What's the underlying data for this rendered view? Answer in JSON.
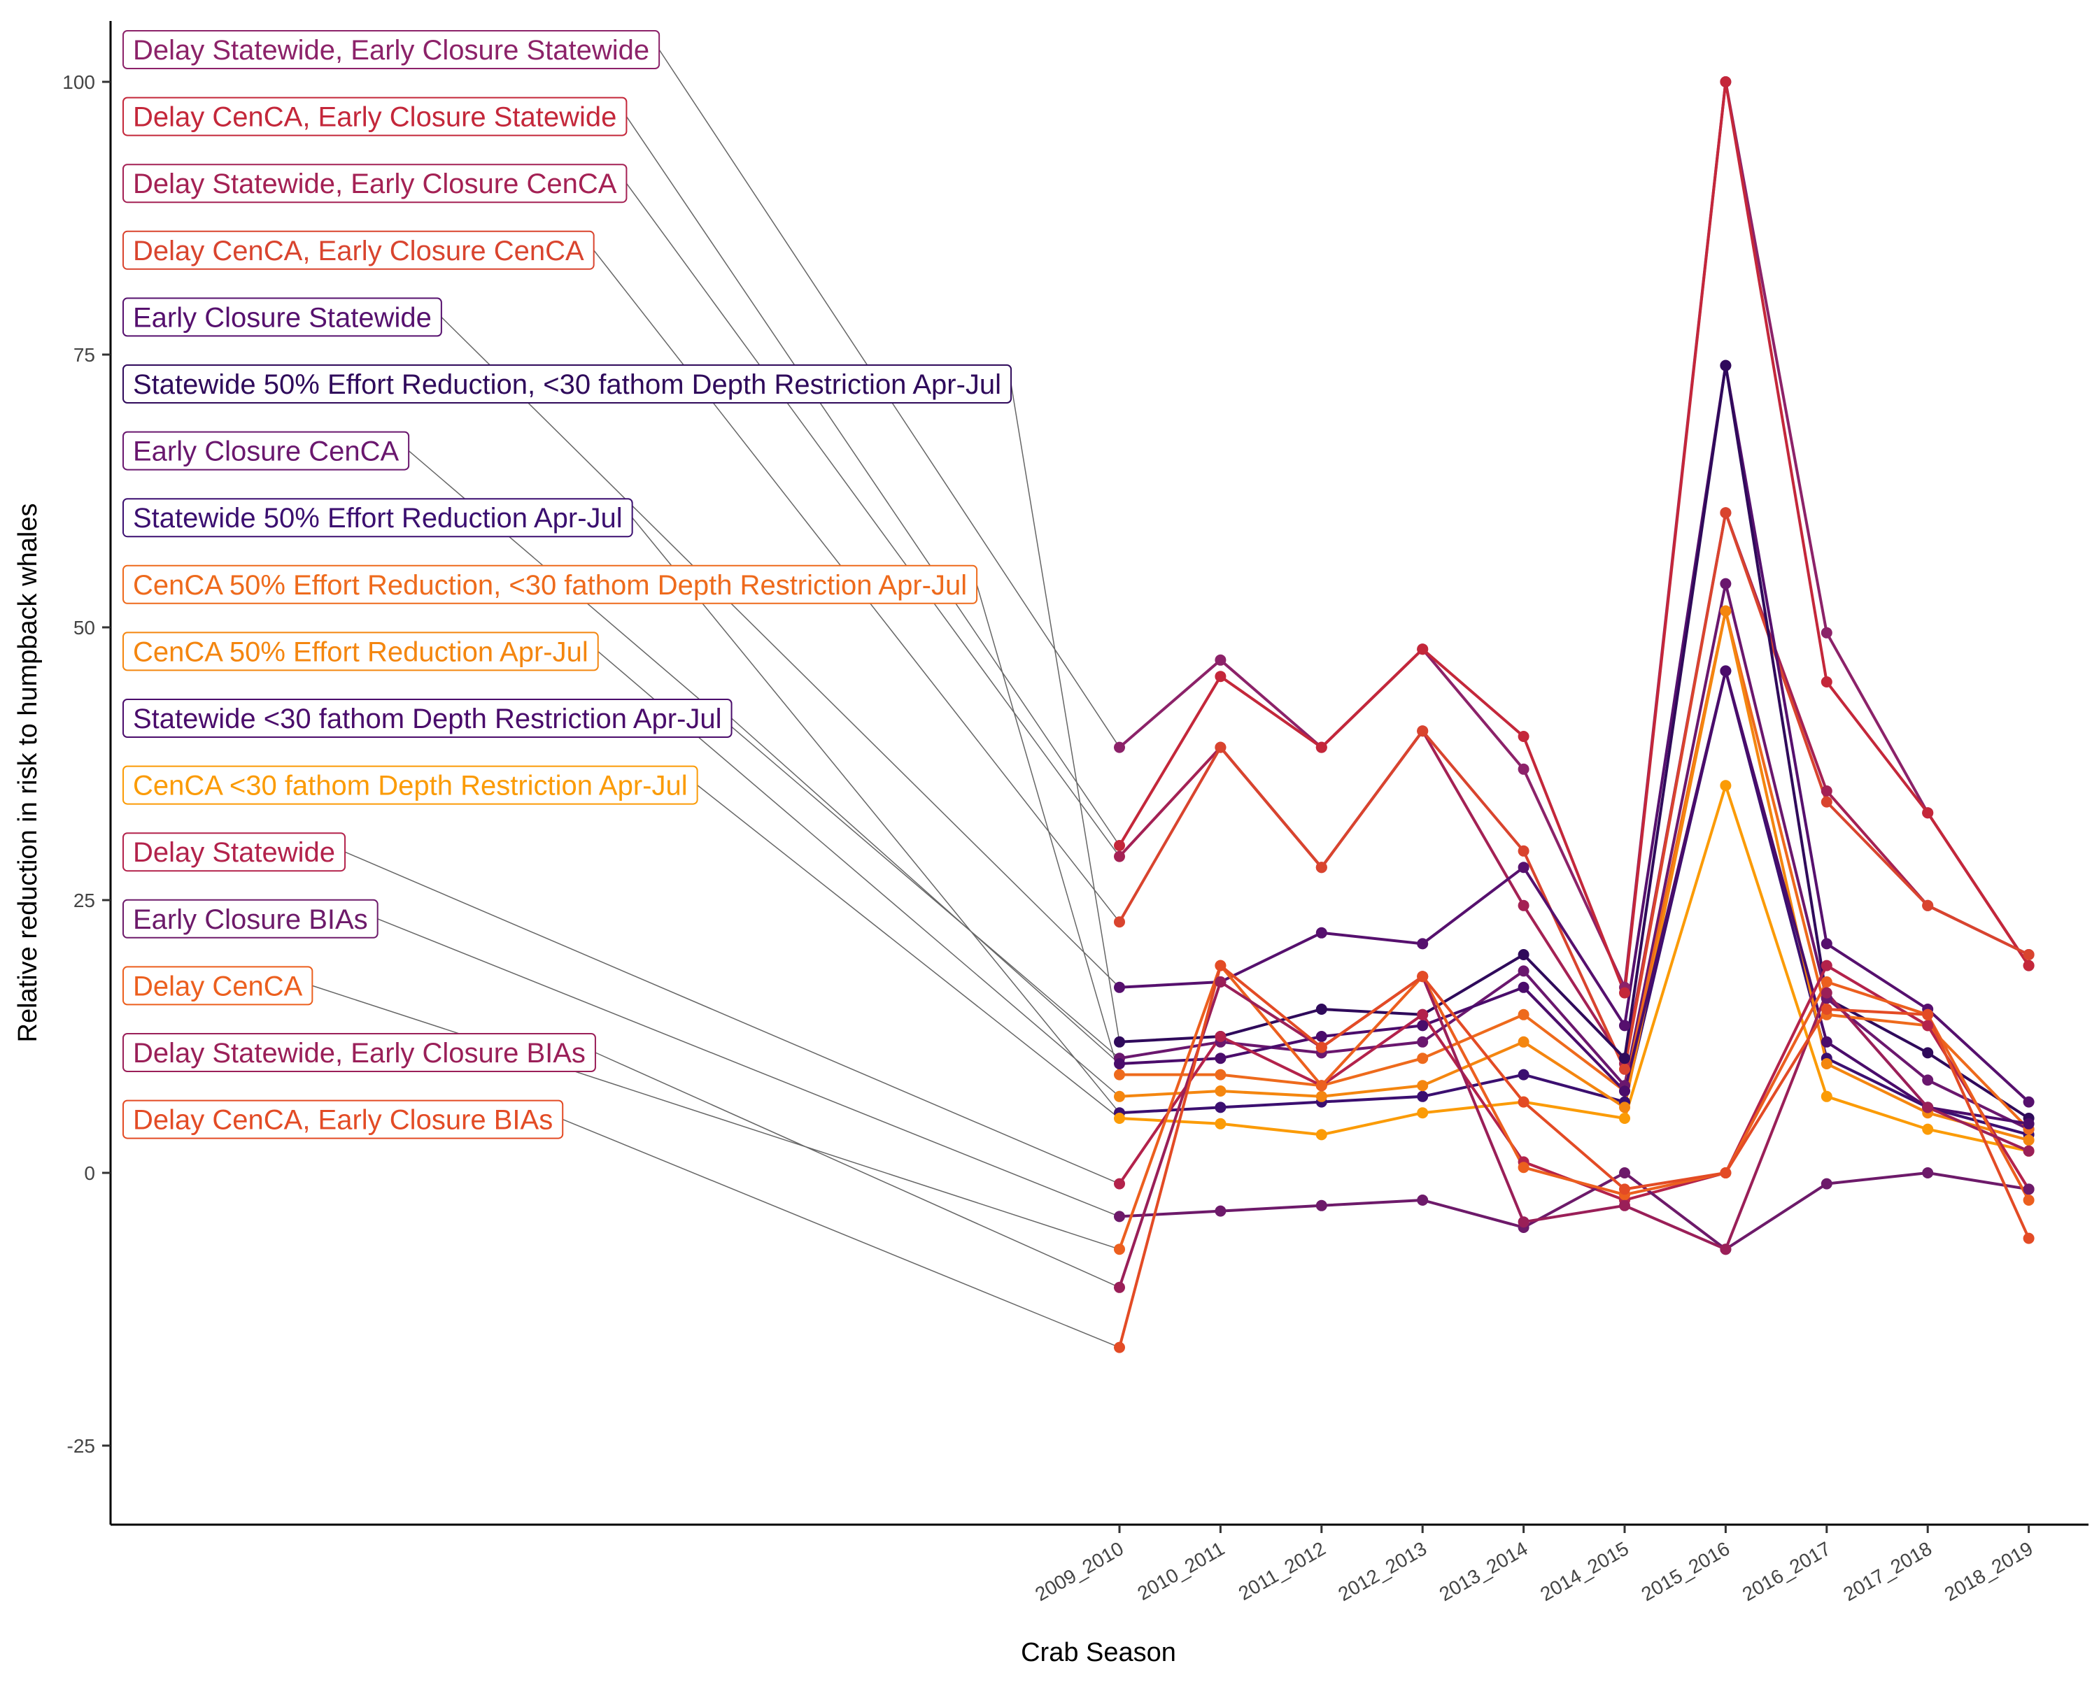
{
  "chart_data": {
    "type": "line",
    "title": "",
    "xlabel": "Crab Season",
    "ylabel": "Relative reduction in risk to humpback whales",
    "ylim": [
      -32,
      106
    ],
    "yticks": [
      -25,
      0,
      25,
      50,
      75,
      100
    ],
    "grid": false,
    "legend": "direct labels on left, connected to 2009_2010 points by leader lines",
    "categories": [
      "2009_2010",
      "2010_2011",
      "2011_2012",
      "2012_2013",
      "2013_2014",
      "2014_2015",
      "2015_2016",
      "2016_2017",
      "2017_2018",
      "2018_2019"
    ],
    "series": [
      {
        "name": "Delay Statewide, Early Closure Statewide",
        "color": "#8c2269",
        "values": [
          39,
          47,
          39,
          48,
          37,
          17,
          100,
          49.5,
          33,
          19
        ]
      },
      {
        "name": "Delay CenCA, Early Closure Statewide",
        "color": "#c4273a",
        "values": [
          30,
          45.5,
          39,
          48,
          40,
          16.5,
          100,
          45,
          33,
          19
        ]
      },
      {
        "name": "Delay Statewide, Early Closure CenCA",
        "color": "#a42154",
        "values": [
          29,
          39,
          28,
          40.5,
          24.5,
          10,
          60.5,
          35,
          24.5,
          20
        ]
      },
      {
        "name": "Delay CenCA, Early Closure CenCA",
        "color": "#d9442e",
        "values": [
          23,
          39,
          28,
          40.5,
          29.5,
          9.5,
          60.5,
          34,
          24.5,
          20
        ]
      },
      {
        "name": "Early Closure Statewide",
        "color": "#56106e",
        "values": [
          17,
          17.5,
          22,
          21,
          28,
          13.5,
          74,
          21,
          15,
          6.5
        ]
      },
      {
        "name": "Statewide 50% Effort Reduction, <30 fathom Depth Restriction Apr-Jul",
        "color": "#2f0a5b",
        "values": [
          12,
          12.5,
          15,
          14.5,
          20,
          10.5,
          74,
          16,
          11,
          5
        ]
      },
      {
        "name": "Early Closure CenCA",
        "color": "#6a176e",
        "values": [
          10.5,
          12,
          11,
          12,
          18.5,
          8,
          54,
          16,
          8.5,
          4
        ]
      },
      {
        "name": "Statewide 50% Effort Reduction Apr-Jul",
        "color": "#3b0f70",
        "values": [
          5.5,
          6,
          6.5,
          7,
          9,
          6.5,
          46,
          10.5,
          6,
          3.5
        ]
      },
      {
        "name": "CenCA 50% Effort Reduction, <30 fathom Depth Restriction Apr-Jul",
        "color": "#ee6a1c",
        "values": [
          9,
          9,
          8,
          10.5,
          14.5,
          7.5,
          51.5,
          14.5,
          13.5,
          4
        ]
      },
      {
        "name": "CenCA 50% Effort Reduction Apr-Jul",
        "color": "#f4860f",
        "values": [
          7,
          7.5,
          7,
          8,
          12,
          6,
          51.5,
          10,
          5.5,
          3
        ]
      },
      {
        "name": "Statewide <30 fathom Depth Restriction Apr-Jul",
        "color": "#4a0c6b",
        "values": [
          10,
          10.5,
          12.5,
          13.5,
          17,
          7.5,
          46,
          12,
          6,
          4.5
        ]
      },
      {
        "name": "CenCA <30 fathom Depth Restriction Apr-Jul",
        "color": "#fb9b06",
        "values": [
          5,
          4.5,
          3.5,
          5.5,
          6.5,
          5,
          35.5,
          7,
          4,
          2
        ]
      },
      {
        "name": "Delay Statewide",
        "color": "#b3224b",
        "values": [
          -1,
          12.5,
          8,
          14.5,
          1,
          -2.5,
          0,
          19,
          13.5,
          -1.5
        ]
      },
      {
        "name": "Early Closure BIAs",
        "color": "#6d1a6a",
        "values": [
          -4,
          -3.5,
          -3,
          -2.5,
          -5,
          0,
          -7,
          -1,
          0,
          -1.5
        ]
      },
      {
        "name": "Delay CenCA",
        "color": "#ec5f1e",
        "values": [
          -7,
          19,
          8,
          18,
          0.5,
          -2,
          0,
          17.5,
          14.5,
          -2.5
        ]
      },
      {
        "name": "Delay Statewide, Early Closure BIAs",
        "color": "#9a1f58",
        "values": [
          -10.5,
          17.5,
          11.5,
          18,
          -4.5,
          -3,
          -7,
          16.5,
          6,
          2
        ]
      },
      {
        "name": "Delay CenCA, Early Closure BIAs",
        "color": "#e34b25",
        "values": [
          -16,
          19,
          11.5,
          18,
          6.5,
          -1.5,
          0,
          15,
          14.5,
          -6
        ]
      }
    ]
  }
}
